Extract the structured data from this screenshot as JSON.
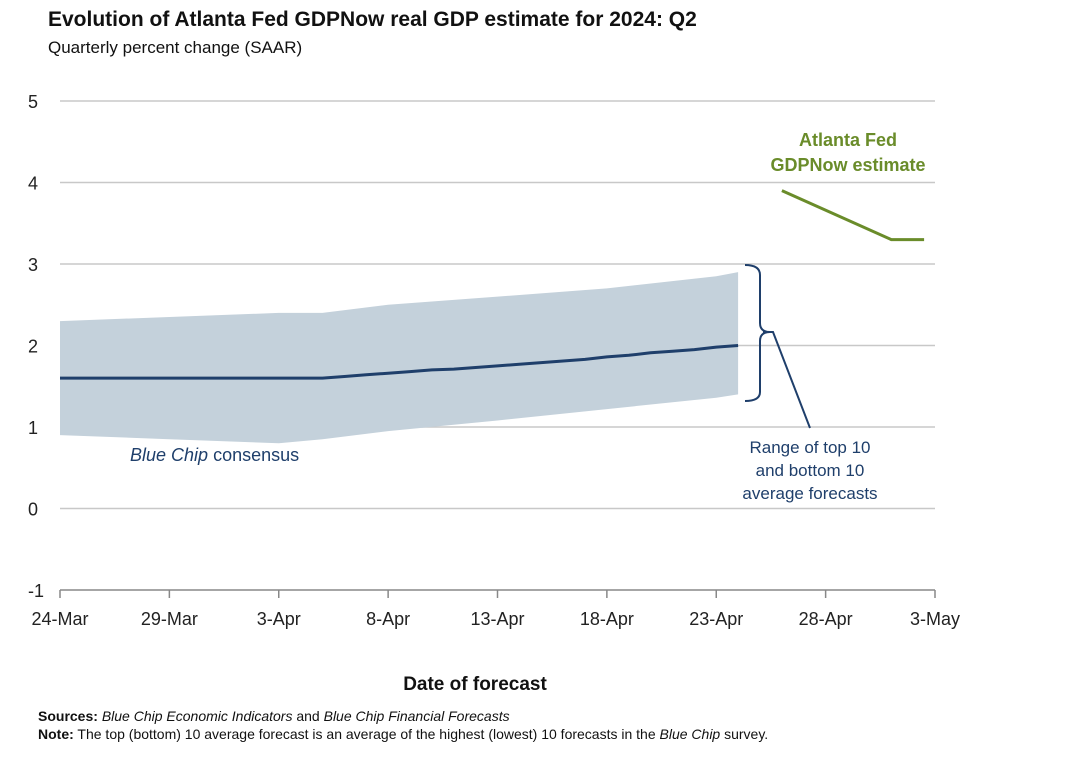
{
  "title": "Evolution of Atlanta Fed GDPNow real GDP estimate for 2024: Q2",
  "subtitle": "Quarterly percent change (SAAR)",
  "colors": {
    "consensus": "#1f3f6b",
    "band": "#c4d1db",
    "gdpnow": "#6a8c2a",
    "grid": "#c8c8c8",
    "axis": "#888888"
  },
  "chart_data": {
    "type": "line",
    "title": "Evolution of Atlanta Fed GDPNow real GDP estimate for 2024: Q2",
    "ylabel": "Quarterly percent change (SAAR)",
    "xlabel": "Date of forecast",
    "ylim": [
      -1,
      5
    ],
    "yticks": [
      5,
      4,
      3,
      2,
      1,
      0,
      -1
    ],
    "xlim_days": [
      0,
      40
    ],
    "xticks": [
      {
        "day": 0,
        "label": "24-Mar"
      },
      {
        "day": 5,
        "label": "29-Mar"
      },
      {
        "day": 10,
        "label": "3-Apr"
      },
      {
        "day": 15,
        "label": "8-Apr"
      },
      {
        "day": 20,
        "label": "13-Apr"
      },
      {
        "day": 25,
        "label": "18-Apr"
      },
      {
        "day": 30,
        "label": "23-Apr"
      },
      {
        "day": 35,
        "label": "28-Apr"
      },
      {
        "day": 40,
        "label": "3-May"
      }
    ],
    "band": {
      "name": "Range of top 10 and bottom 10 average forecasts",
      "days": [
        0,
        5,
        10,
        12,
        15,
        20,
        25,
        30,
        31
      ],
      "upper": [
        2.3,
        2.35,
        2.4,
        2.4,
        2.5,
        2.6,
        2.7,
        2.85,
        2.9
      ],
      "lower": [
        0.9,
        0.85,
        0.8,
        0.85,
        0.95,
        1.08,
        1.22,
        1.36,
        1.4
      ]
    },
    "series": [
      {
        "name": "Blue Chip consensus",
        "days": [
          0,
          5,
          10,
          12,
          13,
          14,
          15,
          16,
          17,
          18,
          19,
          20,
          21,
          22,
          23,
          24,
          25,
          26,
          27,
          28,
          29,
          30,
          31
        ],
        "values": [
          1.6,
          1.6,
          1.6,
          1.6,
          1.62,
          1.64,
          1.66,
          1.68,
          1.7,
          1.71,
          1.73,
          1.75,
          1.77,
          1.79,
          1.81,
          1.83,
          1.86,
          1.88,
          1.91,
          1.93,
          1.95,
          1.98,
          2.0
        ]
      },
      {
        "name": "Atlanta Fed GDPNow estimate",
        "days": [
          33,
          38,
          39,
          39.5
        ],
        "values": [
          3.9,
          3.3,
          3.3,
          3.3
        ]
      }
    ],
    "annotations": {
      "gdpnow_label_line1": "Atlanta Fed",
      "gdpnow_label_line2": "GDPNow estimate",
      "consensus_label_italic": "Blue Chip",
      "consensus_label_rest": "consensus",
      "range_label_line1": "Range of top 10",
      "range_label_line2": "and bottom 10",
      "range_label_line3": "average forecasts"
    }
  },
  "footer": {
    "sources_label": "Sources:",
    "sources_text_1": "Blue Chip Economic Indicators",
    "sources_text_2": " and ",
    "sources_text_3": "Blue Chip Financial Forecasts",
    "note_label": "Note:",
    "note_text_1": " The top (bottom) 10 average forecast is an average of the highest (lowest) 10 forecasts in the ",
    "note_text_2": "Blue Chip",
    "note_text_3": " survey."
  }
}
